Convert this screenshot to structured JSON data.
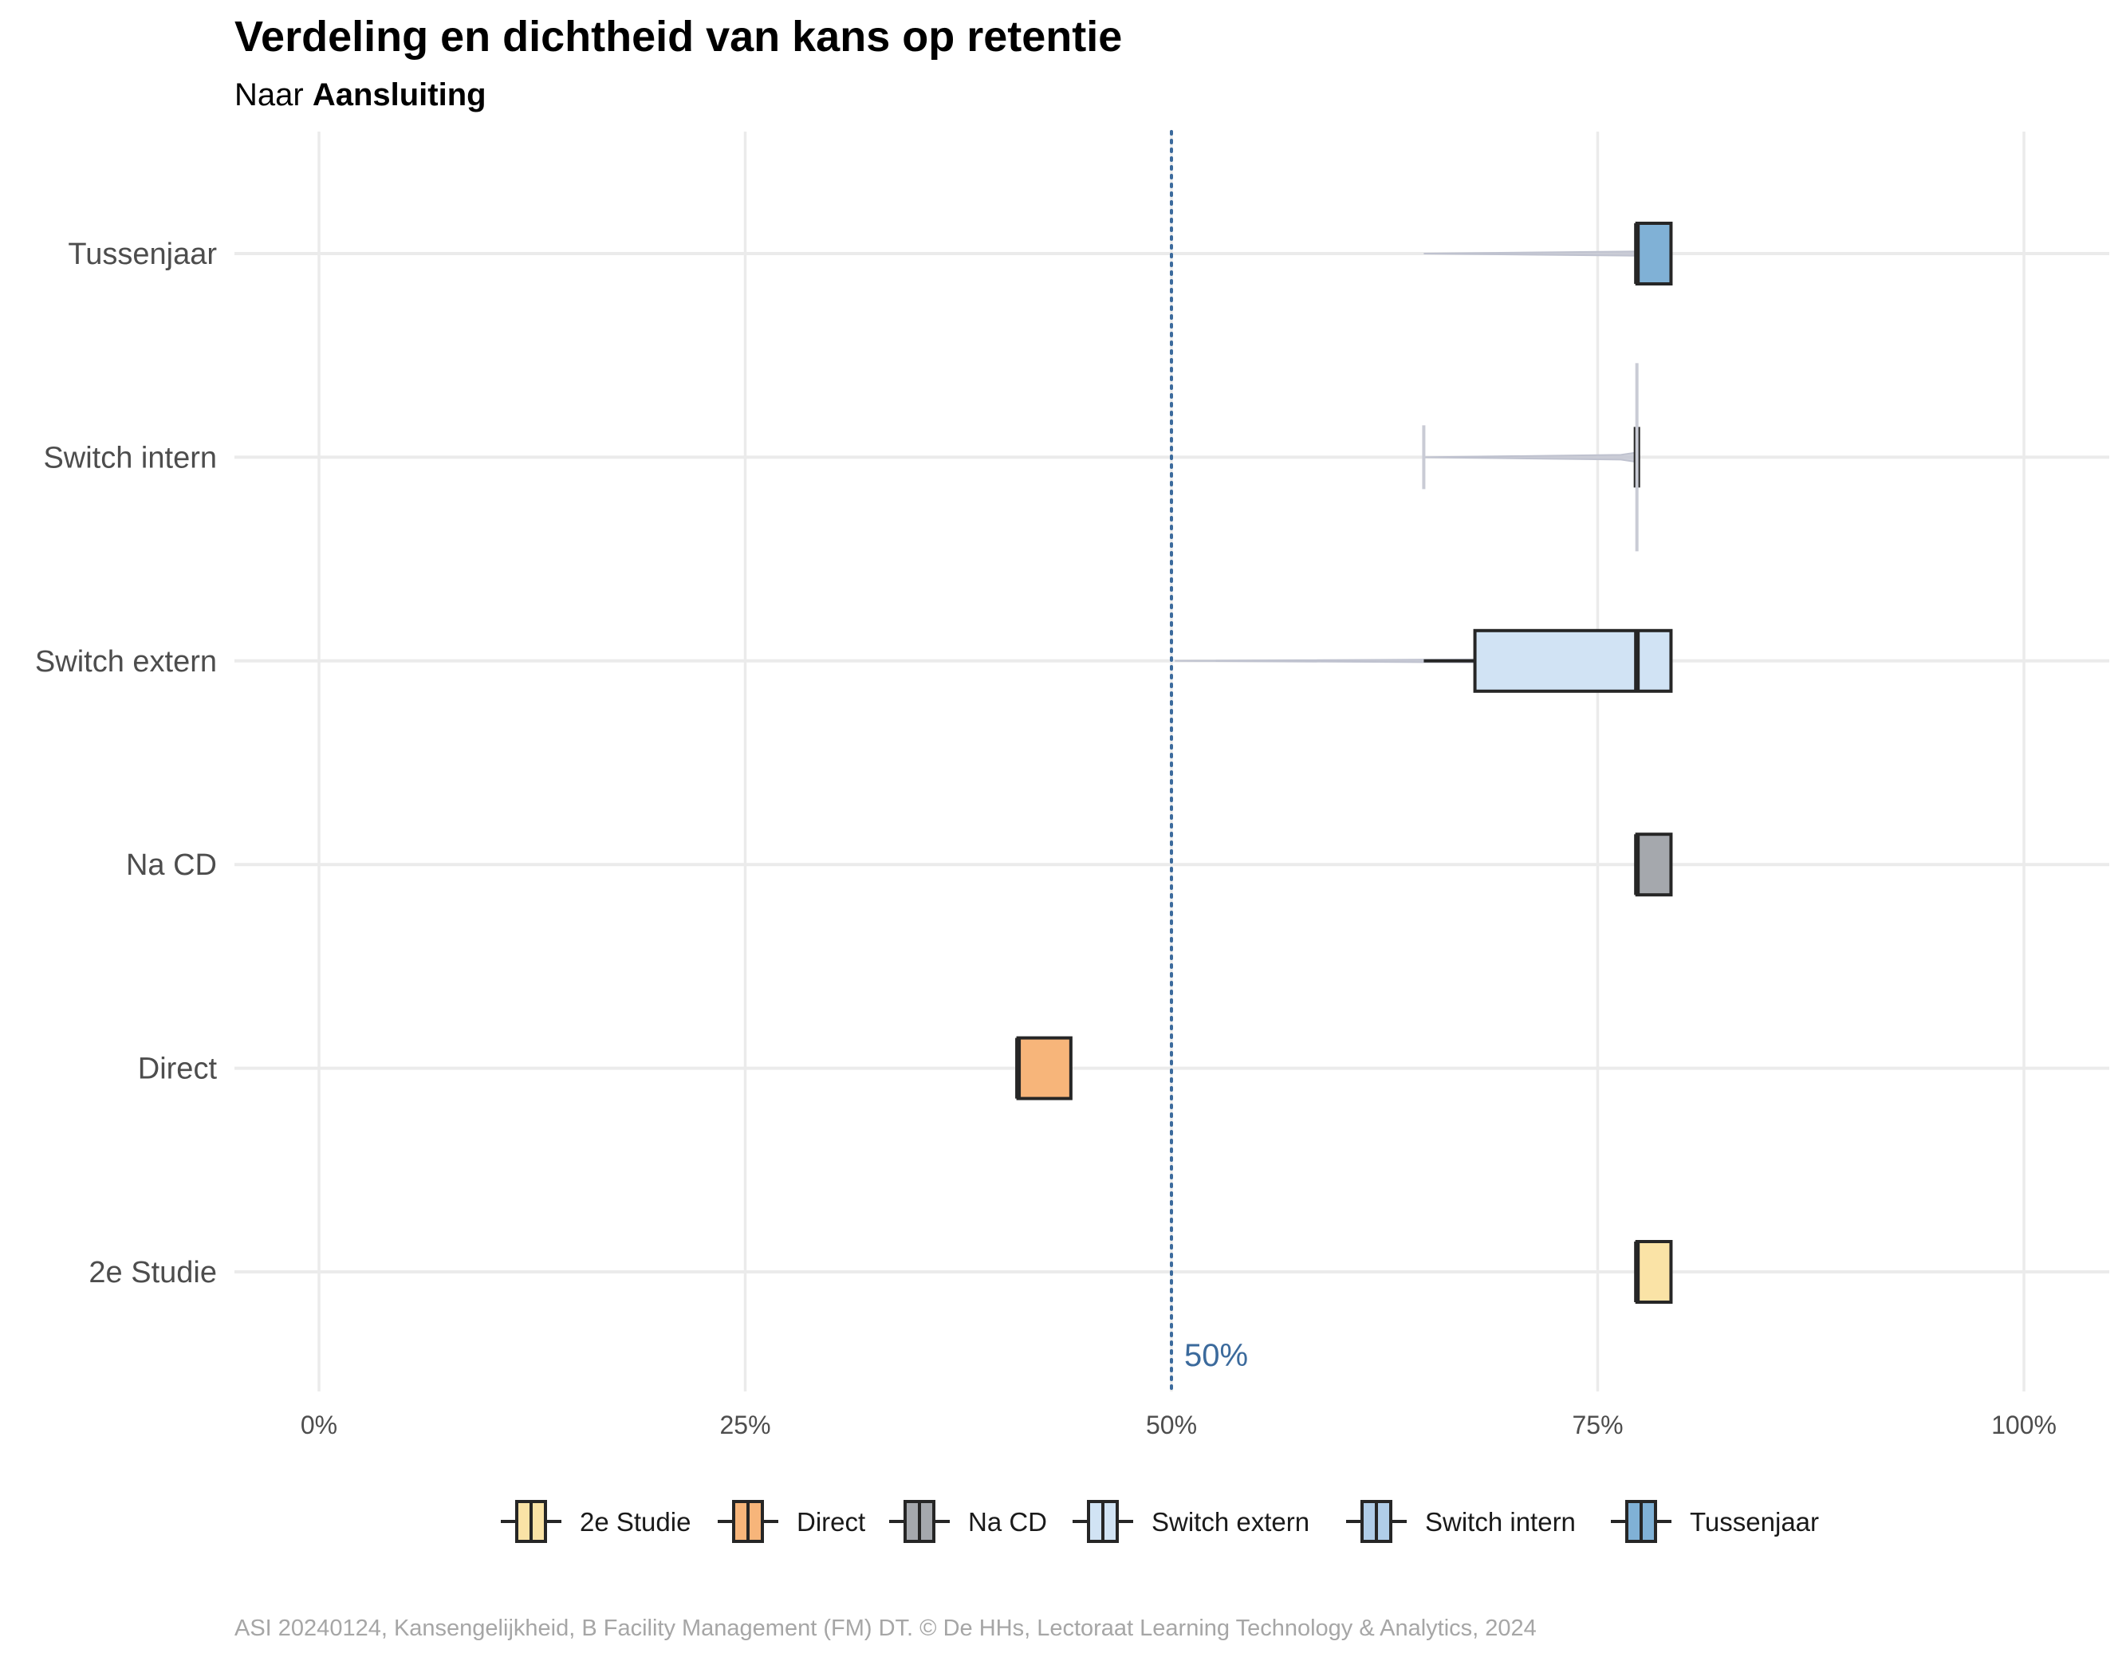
{
  "title": "Verdeling en dichtheid van kans op retentie",
  "subtitle_prefix": "Naar ",
  "subtitle_bold": "Aansluiting",
  "caption": "ASI 20240124, Kansengelijkheid, B Facility Management (FM) DT. © De HHs, Lectoraat Learning Technology & Analytics, 2024",
  "chart_data": {
    "type": "boxplot",
    "orientation": "horizontal",
    "title": "Verdeling en dichtheid van kans op retentie",
    "subtitle": "Naar Aansluiting",
    "xlabel": "",
    "ylabel": "",
    "xlim": [
      0,
      100
    ],
    "x_ticks": [
      0,
      25,
      50,
      75,
      100
    ],
    "x_tick_labels": [
      "0%",
      "25%",
      "50%",
      "75%",
      "100%"
    ],
    "grid": true,
    "legend_position": "bottom",
    "reference_line": {
      "value": 50,
      "label": "50%",
      "style": "dotted",
      "color": "#3b6a9c"
    },
    "categories": [
      "2e Studie",
      "Direct",
      "Na CD",
      "Switch extern",
      "Switch intern",
      "Tussenjaar"
    ],
    "series": [
      {
        "name": "2e Studie",
        "color": "#fae3a6",
        "min": 77.3,
        "q1": 77.3,
        "median": 77.3,
        "q3": 79.3,
        "max": 79.3,
        "density_range": [
          77.3,
          79.3
        ]
      },
      {
        "name": "Direct",
        "color": "#f7b57a",
        "min": 41.0,
        "q1": 41.0,
        "median": 41.0,
        "q3": 44.1,
        "max": 44.1,
        "density_range": [
          41.0,
          44.1
        ]
      },
      {
        "name": "Na CD",
        "color": "#a5a8ad",
        "min": 77.3,
        "q1": 77.3,
        "median": 77.3,
        "q3": 79.3,
        "max": 79.3,
        "density_range": [
          77.3,
          79.3
        ]
      },
      {
        "name": "Switch extern",
        "color": "#d1e3f4",
        "min": 64.8,
        "q1": 67.8,
        "median": 77.3,
        "q3": 79.3,
        "max": 79.3,
        "density_range": [
          50.2,
          79.3
        ]
      },
      {
        "name": "Switch intern",
        "color": "#b0cde8",
        "min": 77.3,
        "q1": 77.3,
        "median": 77.3,
        "q3": 77.3,
        "max": 77.3,
        "density_range": [
          64.8,
          77.3
        ]
      },
      {
        "name": "Tussenjaar",
        "color": "#80b1d6",
        "min": 77.3,
        "q1": 77.3,
        "median": 77.3,
        "q3": 79.3,
        "max": 79.3,
        "density_range": [
          64.8,
          79.3
        ]
      }
    ]
  }
}
